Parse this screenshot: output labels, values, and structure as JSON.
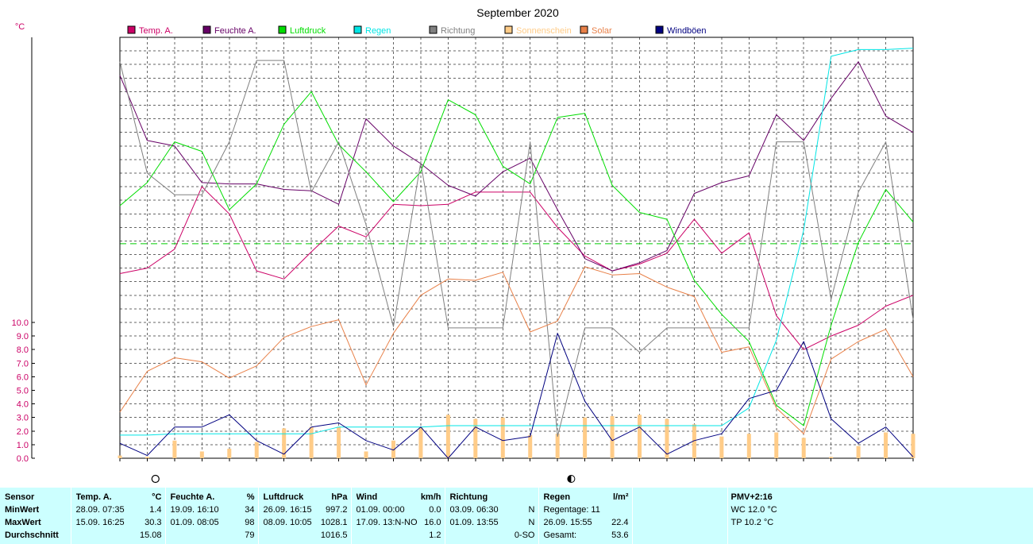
{
  "chart_data": {
    "type": "line",
    "title": "September 2020",
    "y_unit_label": "°C",
    "y_ticks": [
      "0.0",
      "1.0",
      "2.0",
      "3.0",
      "4.0",
      "5.0",
      "6.0",
      "7.0",
      "8.0",
      "9.0",
      "10.0"
    ],
    "y_tick_values": [
      0,
      1,
      2,
      3,
      4,
      5,
      6,
      7,
      8,
      9,
      10
    ],
    "y_grid_step": 1,
    "ylim": [
      0,
      31
    ],
    "xlim": [
      1,
      30
    ],
    "x": [
      1,
      2,
      3,
      4,
      5,
      6,
      7,
      8,
      9,
      10,
      11,
      12,
      13,
      14,
      15,
      16,
      17,
      18,
      19,
      20,
      21,
      22,
      23,
      24,
      25,
      26,
      27,
      28,
      29,
      30
    ],
    "grid": true,
    "legend_position": "top",
    "dashed_reference_line": 15.8,
    "moon_phases": [
      {
        "day": 2.3,
        "phase": "full-moon"
      },
      {
        "day": 17.5,
        "phase": "last-quarter"
      }
    ],
    "series": [
      {
        "name": "Temp. A.",
        "color": "#cc0066",
        "kind": "line",
        "values": [
          13.6,
          14.0,
          15.4,
          20.0,
          18.0,
          13.8,
          13.2,
          15.2,
          17.1,
          16.3,
          18.7,
          18.6,
          18.7,
          19.6,
          19.6,
          19.6,
          17.0,
          14.9,
          13.8,
          14.3,
          15.1,
          17.6,
          15.1,
          16.6,
          10.5,
          8.0,
          9.0,
          9.8,
          11.2,
          12.0
        ]
      },
      {
        "name": "Feuchte A.",
        "color": "#660066",
        "kind": "line",
        "values": [
          28.2,
          23.4,
          23.0,
          20.3,
          20.2,
          20.2,
          19.8,
          19.7,
          18.7,
          25.0,
          23.0,
          21.7,
          20.1,
          19.3,
          21.1,
          22.1,
          18.3,
          14.7,
          13.8,
          14.4,
          15.3,
          19.5,
          20.3,
          20.8,
          25.3,
          23.4,
          26.5,
          29.2,
          25.2,
          24.0
        ]
      },
      {
        "name": "Luftdruck",
        "color": "#00dd00",
        "kind": "line",
        "values": [
          18.6,
          20.3,
          23.3,
          22.6,
          18.3,
          20.2,
          24.6,
          27.0,
          23.1,
          21.1,
          18.9,
          21.1,
          26.4,
          25.3,
          21.5,
          20.2,
          25.1,
          25.4,
          20.1,
          18.1,
          17.6,
          13.1,
          10.6,
          8.6,
          3.9,
          2.4,
          9.8,
          15.9,
          19.8,
          17.4
        ]
      },
      {
        "name": "Regen",
        "color": "#00e5e5",
        "kind": "line",
        "values": [
          1.7,
          1.7,
          1.8,
          1.8,
          1.8,
          1.8,
          1.8,
          1.8,
          2.3,
          2.3,
          2.3,
          2.3,
          2.4,
          2.4,
          2.4,
          2.4,
          2.4,
          2.4,
          2.4,
          2.4,
          2.4,
          2.4,
          2.4,
          3.7,
          8.7,
          16.8,
          29.6,
          30.1,
          30.1,
          30.2
        ]
      },
      {
        "name": "Richtung",
        "color": "#808080",
        "kind": "line",
        "values": [
          29.2,
          21.0,
          19.4,
          19.4,
          23.3,
          29.3,
          29.3,
          19.6,
          23.3,
          17.2,
          9.7,
          21.8,
          9.6,
          9.6,
          9.6,
          23.3,
          1.6,
          9.6,
          9.6,
          7.8,
          9.6,
          9.6,
          9.6,
          9.6,
          23.3,
          23.3,
          11.7,
          19.6,
          23.3,
          10.2
        ]
      },
      {
        "name": "Sonnenschein",
        "color": "#ffcc88",
        "kind": "bar",
        "values": [
          0.2,
          0.1,
          1.3,
          0.5,
          0.7,
          1.2,
          2.2,
          2.3,
          2.3,
          0.5,
          1.3,
          2.3,
          3.2,
          2.9,
          3.0,
          1.7,
          1.8,
          3.0,
          3.1,
          3.2,
          2.9,
          2.5,
          1.6,
          1.8,
          1.9,
          1.5,
          0.1,
          0.9,
          1.9,
          1.8
        ]
      },
      {
        "name": "Solar",
        "color": "#e88048",
        "kind": "line",
        "values": [
          3.4,
          6.4,
          7.4,
          7.1,
          5.9,
          6.8,
          8.9,
          9.7,
          10.2,
          5.4,
          9.2,
          12.0,
          13.2,
          13.1,
          13.7,
          9.3,
          10.1,
          14.1,
          13.5,
          13.6,
          12.6,
          11.9,
          7.8,
          8.2,
          3.7,
          1.8,
          7.3,
          8.6,
          9.5,
          6.0
        ]
      },
      {
        "name": "Windböen",
        "color": "#000080",
        "kind": "line",
        "values": [
          1.1,
          0.2,
          2.3,
          2.3,
          3.2,
          1.3,
          0.3,
          2.3,
          2.6,
          1.3,
          0.6,
          2.3,
          0.0,
          2.3,
          1.3,
          1.6,
          9.2,
          4.2,
          1.3,
          2.3,
          0.3,
          1.3,
          1.8,
          4.4,
          5.0,
          8.6,
          2.9,
          1.1,
          2.3,
          0.1
        ]
      }
    ]
  },
  "stats": {
    "sensor": {
      "header": "Sensor",
      "min_label": "MinWert",
      "max_label": "MaxWert",
      "avg_label": "Durchschnitt"
    },
    "temp": {
      "header": "Temp. A.",
      "unit": "°C",
      "min_dt": "28.09.  07:35",
      "min_val": "1.4",
      "max_dt": "15.09.  16:25",
      "max_val": "30.3",
      "avg_val": "15.08"
    },
    "feuchte": {
      "header": "Feuchte A.",
      "unit": "%",
      "min_dt": "19.09.  16:10",
      "min_val": "34",
      "max_dt": "01.09.  08:05",
      "max_val": "98",
      "avg_val": "79"
    },
    "luftdruck": {
      "header": "Luftdruck",
      "unit": "hPa",
      "min_dt": "26.09.  16:15",
      "min_val": "997.2",
      "max_dt": "08.09.  10:05",
      "max_val": "1028.1",
      "avg_val": "1016.5"
    },
    "wind": {
      "header": "Wind",
      "unit": "km/h",
      "min_dt": "01.09.  00:00",
      "min_val": "0.0",
      "max_dt": "17.09.  13:N-NO",
      "max_val": "16.0",
      "avg_val": "1.2"
    },
    "richtung": {
      "header": "Richtung",
      "min_dt": "03.09.  06:30",
      "min_val": "N",
      "max_dt": "01.09.  13:55",
      "max_val": "N",
      "avg_val": "0-SO"
    },
    "regen": {
      "header": "Regen",
      "unit": "l/m²",
      "days_label": "Regentage: 11",
      "max_dt": "26.09.  15:55",
      "max_val": "22.4",
      "total_label": "Gesamt:",
      "total_val": "53.6"
    },
    "pmv": {
      "header": "PMV+2:16",
      "wc": "WC 12.0 °C",
      "tp": "TP 10.2 °C"
    }
  }
}
